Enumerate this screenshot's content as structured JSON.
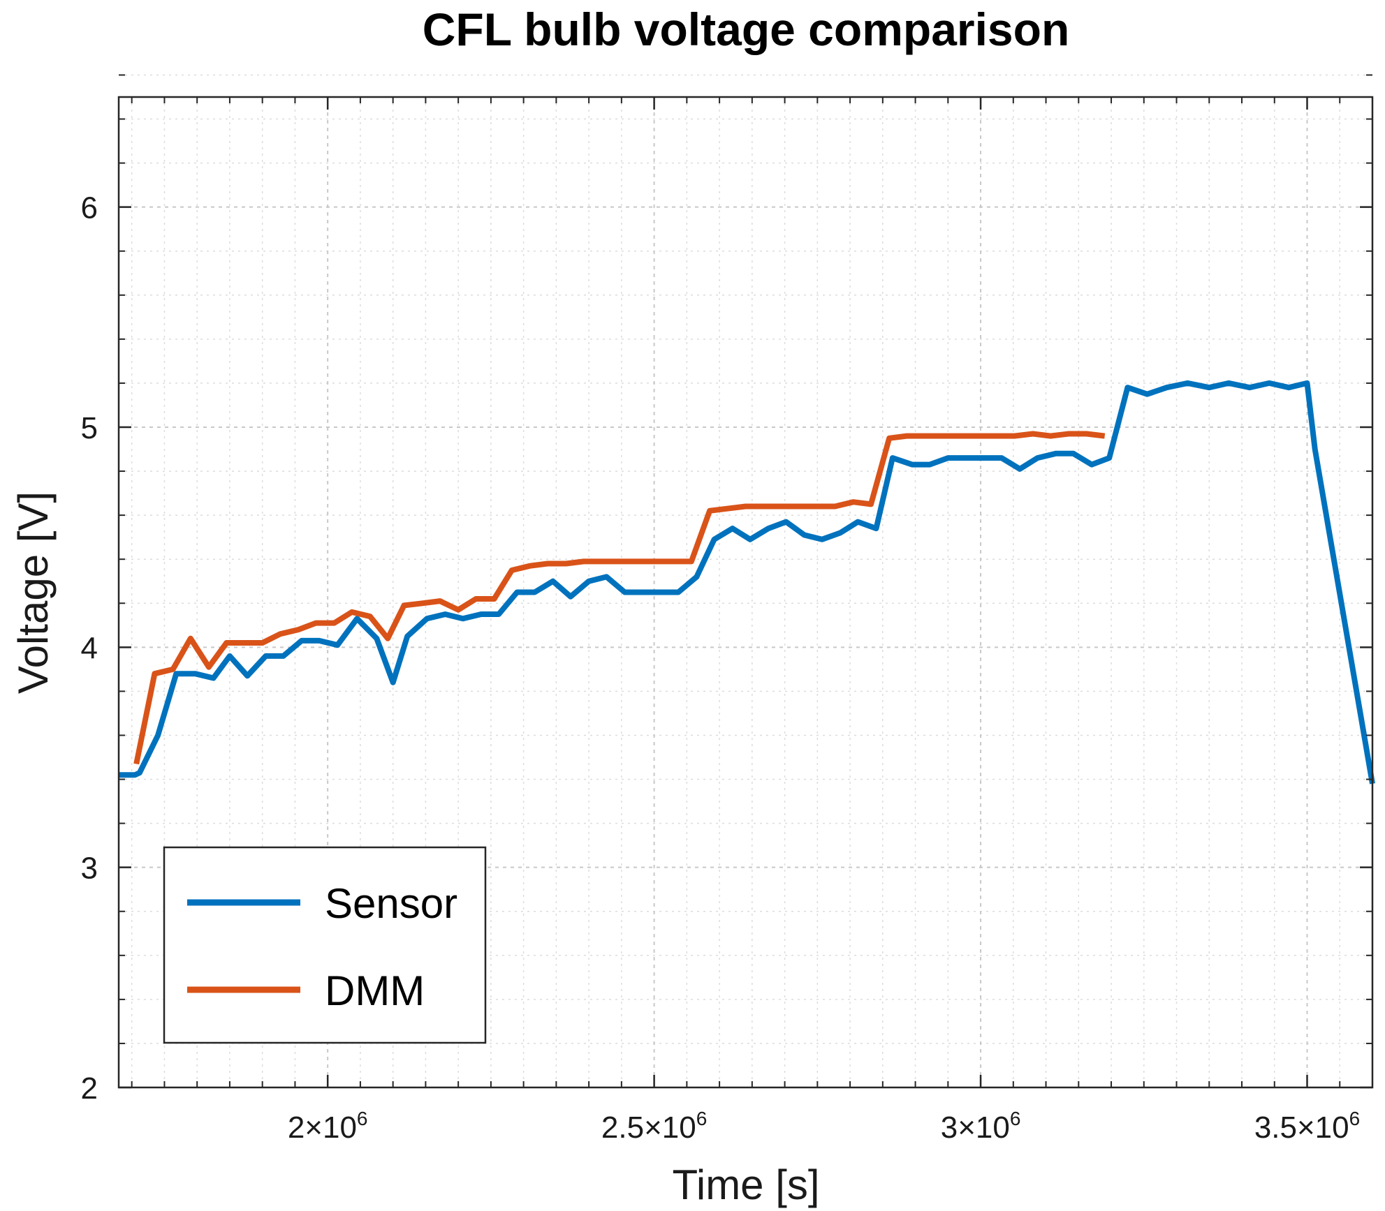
{
  "chart_data": {
    "type": "line",
    "title": "CFL bulb voltage comparison",
    "xlabel": "Time [s]",
    "ylabel": "Voltage [V]",
    "xlim": [
      1680000,
      3600000
    ],
    "ylim": [
      2,
      6.5
    ],
    "grid": true,
    "minor_grid": true,
    "x_ticks": [
      {
        "value": 2000000,
        "mantissa": "2",
        "exp": "6"
      },
      {
        "value": 2500000,
        "mantissa": "2.5",
        "exp": "6"
      },
      {
        "value": 3000000,
        "mantissa": "3",
        "exp": "6"
      },
      {
        "value": 3500000,
        "mantissa": "3.5",
        "exp": "6"
      }
    ],
    "y_ticks": [
      {
        "value": 2,
        "label": "2"
      },
      {
        "value": 3,
        "label": "3"
      },
      {
        "value": 4,
        "label": "4"
      },
      {
        "value": 5,
        "label": "5"
      },
      {
        "value": 6,
        "label": "6"
      }
    ],
    "legend_position": "bottom-left",
    "series": [
      {
        "name": "Sensor",
        "color": "#0072BD",
        "points": [
          [
            1680000,
            3.42
          ],
          [
            1705000,
            3.42
          ],
          [
            1712000,
            3.43
          ],
          [
            1740000,
            3.6
          ],
          [
            1768000,
            3.88
          ],
          [
            1797000,
            3.88
          ],
          [
            1825000,
            3.86
          ],
          [
            1850000,
            3.96
          ],
          [
            1877000,
            3.87
          ],
          [
            1905000,
            3.96
          ],
          [
            1932000,
            3.96
          ],
          [
            1960000,
            4.03
          ],
          [
            1987000,
            4.03
          ],
          [
            2015000,
            4.01
          ],
          [
            2045000,
            4.13
          ],
          [
            2075000,
            4.04
          ],
          [
            2100000,
            3.84
          ],
          [
            2122000,
            4.05
          ],
          [
            2152000,
            4.13
          ],
          [
            2180000,
            4.15
          ],
          [
            2207000,
            4.13
          ],
          [
            2235000,
            4.15
          ],
          [
            2262000,
            4.15
          ],
          [
            2290000,
            4.25
          ],
          [
            2317000,
            4.25
          ],
          [
            2345000,
            4.3
          ],
          [
            2372000,
            4.23
          ],
          [
            2400000,
            4.3
          ],
          [
            2427000,
            4.32
          ],
          [
            2455000,
            4.25
          ],
          [
            2482000,
            4.25
          ],
          [
            2510000,
            4.25
          ],
          [
            2537000,
            4.25
          ],
          [
            2565000,
            4.32
          ],
          [
            2592000,
            4.49
          ],
          [
            2620000,
            4.54
          ],
          [
            2647000,
            4.49
          ],
          [
            2675000,
            4.54
          ],
          [
            2702000,
            4.57
          ],
          [
            2730000,
            4.51
          ],
          [
            2757000,
            4.49
          ],
          [
            2785000,
            4.52
          ],
          [
            2812000,
            4.57
          ],
          [
            2840000,
            4.54
          ],
          [
            2865000,
            4.86
          ],
          [
            2895000,
            4.83
          ],
          [
            2922000,
            4.83
          ],
          [
            2950000,
            4.86
          ],
          [
            2977000,
            4.86
          ],
          [
            3005000,
            4.86
          ],
          [
            3032000,
            4.86
          ],
          [
            3060000,
            4.81
          ],
          [
            3087000,
            4.86
          ],
          [
            3115000,
            4.88
          ],
          [
            3142000,
            4.88
          ],
          [
            3170000,
            4.83
          ],
          [
            3197000,
            4.86
          ],
          [
            3225000,
            5.18
          ],
          [
            3255000,
            5.15
          ],
          [
            3285000,
            5.18
          ],
          [
            3317000,
            5.2
          ],
          [
            3350000,
            5.18
          ],
          [
            3380000,
            5.2
          ],
          [
            3412000,
            5.18
          ],
          [
            3442000,
            5.2
          ],
          [
            3472000,
            5.18
          ],
          [
            3500000,
            5.2
          ],
          [
            3512000,
            4.9
          ],
          [
            3600000,
            3.38
          ]
        ]
      },
      {
        "name": "DMM",
        "color": "#D95319",
        "points": [
          [
            1707000,
            3.47
          ],
          [
            1735000,
            3.88
          ],
          [
            1763000,
            3.9
          ],
          [
            1790000,
            4.04
          ],
          [
            1818000,
            3.91
          ],
          [
            1845000,
            4.02
          ],
          [
            1872000,
            4.02
          ],
          [
            1900000,
            4.02
          ],
          [
            1927000,
            4.06
          ],
          [
            1955000,
            4.08
          ],
          [
            1982000,
            4.11
          ],
          [
            2010000,
            4.11
          ],
          [
            2037000,
            4.16
          ],
          [
            2065000,
            4.14
          ],
          [
            2092000,
            4.04
          ],
          [
            2117000,
            4.19
          ],
          [
            2145000,
            4.2
          ],
          [
            2172000,
            4.21
          ],
          [
            2200000,
            4.17
          ],
          [
            2227000,
            4.22
          ],
          [
            2255000,
            4.22
          ],
          [
            2282000,
            4.35
          ],
          [
            2310000,
            4.37
          ],
          [
            2337000,
            4.38
          ],
          [
            2365000,
            4.38
          ],
          [
            2392000,
            4.39
          ],
          [
            2420000,
            4.39
          ],
          [
            2447000,
            4.39
          ],
          [
            2475000,
            4.39
          ],
          [
            2502000,
            4.39
          ],
          [
            2530000,
            4.39
          ],
          [
            2557000,
            4.39
          ],
          [
            2585000,
            4.62
          ],
          [
            2612000,
            4.63
          ],
          [
            2640000,
            4.64
          ],
          [
            2667000,
            4.64
          ],
          [
            2695000,
            4.64
          ],
          [
            2722000,
            4.64
          ],
          [
            2750000,
            4.64
          ],
          [
            2777000,
            4.64
          ],
          [
            2805000,
            4.66
          ],
          [
            2832000,
            4.65
          ],
          [
            2860000,
            4.95
          ],
          [
            2887000,
            4.96
          ],
          [
            2915000,
            4.96
          ],
          [
            2942000,
            4.96
          ],
          [
            2970000,
            4.96
          ],
          [
            2997000,
            4.96
          ],
          [
            3025000,
            4.96
          ],
          [
            3052000,
            4.96
          ],
          [
            3080000,
            4.97
          ],
          [
            3107000,
            4.96
          ],
          [
            3135000,
            4.97
          ],
          [
            3162000,
            4.97
          ],
          [
            3190000,
            4.96
          ]
        ]
      }
    ]
  }
}
